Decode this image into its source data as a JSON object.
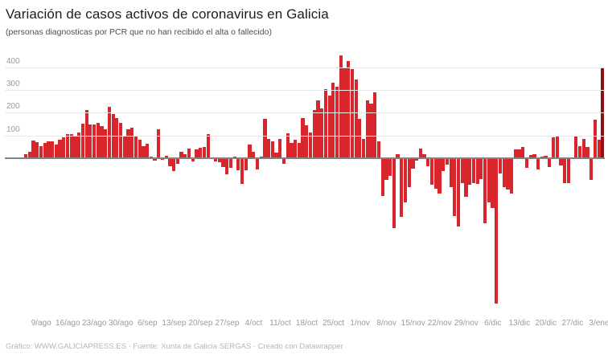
{
  "chart_data": {
    "type": "bar",
    "title": "Variación de casos activos de coronavirus en Galicia",
    "subtitle": "(personas diagnosticas por PCR que no han recibido el alta o fallecido)",
    "footer": "Gráfico: WWW.GALICIAPRESS.ES · Fuente: Xunta de Galicia SERGAS · Creado con Datawrapper",
    "xlabel": "",
    "ylabel": "",
    "ylim": [
      -681,
      490
    ],
    "gridlines": [
      100,
      200,
      300,
      400
    ],
    "grid": "horizontal gridlines above baseline only",
    "legend": "none",
    "x_tick_labels": [
      "9/ago",
      "16/ago",
      "23/ago",
      "30/ago",
      "6/sep",
      "13/sep",
      "20/sep",
      "27/sep",
      "4/oct",
      "11/oct",
      "18/oct",
      "25/oct",
      "1/nov",
      "8/nov",
      "15/nov",
      "22/nov",
      "29/nov",
      "6/dic",
      "13/dic",
      "20/dic",
      "27/dic",
      "3/ene"
    ],
    "tick_start_index": 4,
    "tick_interval": 7,
    "dates": [
      "5/ago",
      "6/ago",
      "7/ago",
      "8/ago",
      "9/ago",
      "10/ago",
      "11/ago",
      "12/ago",
      "13/ago",
      "14/ago",
      "15/ago",
      "16/ago",
      "17/ago",
      "18/ago",
      "19/ago",
      "20/ago",
      "21/ago",
      "22/ago",
      "23/ago",
      "24/ago",
      "25/ago",
      "26/ago",
      "27/ago",
      "28/ago",
      "29/ago",
      "30/ago",
      "31/ago",
      "1/sep",
      "2/sep",
      "3/sep",
      "4/sep",
      "5/sep",
      "6/sep",
      "7/sep",
      "8/sep",
      "9/sep",
      "10/sep",
      "11/sep",
      "12/sep",
      "13/sep",
      "14/sep",
      "15/sep",
      "16/sep",
      "17/sep",
      "18/sep",
      "19/sep",
      "20/sep",
      "21/sep",
      "22/sep",
      "23/sep",
      "24/sep",
      "25/sep",
      "26/sep",
      "27/sep",
      "28/sep",
      "29/sep",
      "30/sep",
      "1/oct",
      "2/oct",
      "3/oct",
      "4/oct",
      "5/oct",
      "6/oct",
      "7/oct",
      "8/oct",
      "9/oct",
      "10/oct",
      "11/oct",
      "12/oct",
      "13/oct",
      "14/oct",
      "15/oct",
      "16/oct",
      "17/oct",
      "18/oct",
      "19/oct",
      "20/oct",
      "21/oct",
      "22/oct",
      "23/oct",
      "24/oct",
      "25/oct",
      "26/oct",
      "27/oct",
      "28/oct",
      "29/oct",
      "30/oct",
      "31/oct",
      "1/nov",
      "2/nov",
      "3/nov",
      "4/nov",
      "5/nov",
      "6/nov",
      "7/nov",
      "8/nov",
      "9/nov",
      "10/nov",
      "11/nov",
      "12/nov",
      "13/nov",
      "14/nov",
      "15/nov",
      "16/nov",
      "17/nov",
      "18/nov",
      "19/nov",
      "20/nov",
      "21/nov",
      "22/nov",
      "23/nov",
      "24/nov",
      "25/nov",
      "26/nov",
      "27/nov",
      "28/nov",
      "29/nov",
      "30/nov",
      "1/dic",
      "2/dic",
      "3/dic",
      "4/dic",
      "5/dic",
      "6/dic",
      "7/dic",
      "8/dic",
      "9/dic",
      "10/dic",
      "11/dic",
      "12/dic",
      "13/dic",
      "14/dic",
      "15/dic",
      "16/dic",
      "17/dic",
      "18/dic",
      "19/dic",
      "20/dic",
      "21/dic",
      "22/dic",
      "23/dic",
      "24/dic",
      "25/dic",
      "26/dic",
      "27/dic",
      "28/dic",
      "29/dic",
      "30/dic",
      "31/dic",
      "1/ene",
      "2/ene",
      "3/ene",
      "4/ene"
    ],
    "values": [
      18,
      28,
      76,
      70,
      51,
      66,
      74,
      74,
      61,
      82,
      92,
      106,
      106,
      100,
      113,
      152,
      210,
      148,
      148,
      156,
      142,
      125,
      225,
      194,
      175,
      154,
      95,
      125,
      133,
      95,
      81,
      54,
      62,
      7,
      -12,
      127,
      -8,
      11,
      -34,
      -58,
      -25,
      27,
      19,
      42,
      -16,
      39,
      46,
      48,
      104,
      2,
      -14,
      -19,
      -39,
      -72,
      -44,
      7,
      -54,
      -112,
      -53,
      58,
      28,
      -48,
      8,
      174,
      86,
      74,
      25,
      86,
      -26,
      109,
      68,
      80,
      65,
      176,
      145,
      112,
      212,
      253,
      220,
      302,
      274,
      333,
      314,
      450,
      400,
      427,
      392,
      345,
      174,
      84,
      255,
      240,
      290,
      74,
      -167,
      -96,
      -79,
      -308,
      19,
      -258,
      -193,
      -127,
      -47,
      -10,
      42,
      16,
      -35,
      -115,
      -136,
      -154,
      -56,
      -28,
      -127,
      -254,
      -300,
      -110,
      -169,
      -116,
      -108,
      -114,
      -91,
      -285,
      -196,
      -220,
      -638,
      -67,
      -126,
      -138,
      -155,
      40,
      40,
      50,
      -44,
      15,
      18,
      -49,
      6,
      9,
      -40,
      90,
      98,
      -32,
      -108,
      -108,
      4,
      98,
      54,
      85,
      48,
      -96,
      170,
      80,
      400
    ],
    "highlight_index": 152,
    "colors": {
      "bar": "#d8262c",
      "bar_highlight": "#8b1113",
      "gridline": "#e9e9e9",
      "baseline": "#828282",
      "axis_label": "#9b9b9b",
      "title": "#1c1c1c",
      "subtitle": "#4f4f4f",
      "footer": "#b5b5b5"
    }
  }
}
